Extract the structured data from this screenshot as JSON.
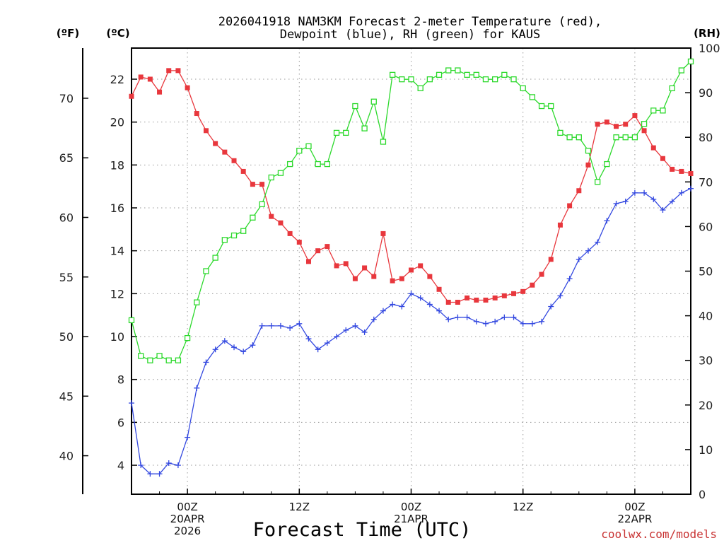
{
  "chart_data": {
    "type": "line",
    "title_lines": [
      "2026041918 NAM3KM Forecast 2-meter Temperature (red),",
      "Dewpoint (blue), RH (green) for KAUS"
    ],
    "xlabel": "Forecast Time (UTC)",
    "credit": "coolwx.com/models",
    "units": {
      "fahrenheit": "(ºF)",
      "celsius": "(ºC)",
      "rh": "(RH)"
    },
    "x_range_hours": [
      0,
      60
    ],
    "x_ticks": [
      {
        "hour": 6,
        "lines": [
          "00Z",
          "20APR",
          "2026"
        ]
      },
      {
        "hour": 18,
        "lines": [
          "12Z"
        ]
      },
      {
        "hour": 30,
        "lines": [
          "00Z",
          "21APR"
        ]
      },
      {
        "hour": 42,
        "lines": [
          "12Z"
        ]
      },
      {
        "hour": 54,
        "lines": [
          "00Z",
          "22APR"
        ]
      }
    ],
    "y_celsius": {
      "range": [
        2.65,
        23.45
      ],
      "ticks": [
        "4",
        "6",
        "8",
        "10",
        "12",
        "14",
        "16",
        "18",
        "20",
        "22"
      ]
    },
    "y_fahrenheit": {
      "ticks": [
        "40",
        "45",
        "50",
        "55",
        "60",
        "65",
        "70"
      ]
    },
    "y_rh": {
      "range": [
        0,
        100
      ],
      "ticks": [
        "0",
        "10",
        "20",
        "30",
        "40",
        "50",
        "60",
        "70",
        "80",
        "90",
        "100"
      ]
    },
    "series": [
      {
        "name": "2-meter Temperature",
        "unit": "C",
        "color": "#e8373d",
        "marker": "filled-square",
        "hours": [
          0,
          1,
          2,
          3,
          4,
          5,
          6,
          7,
          8,
          9,
          10,
          11,
          12,
          13,
          14,
          15,
          16,
          17,
          18,
          19,
          20,
          21,
          22,
          23,
          24,
          25,
          26,
          27,
          28,
          29,
          30,
          31,
          32,
          33,
          34,
          35,
          36,
          37,
          38,
          39,
          40,
          41,
          42,
          43,
          44,
          45,
          46,
          47,
          48,
          49,
          50,
          51,
          52,
          53,
          54,
          55,
          56,
          57,
          58,
          59,
          60
        ],
        "values": [
          21.2,
          22.1,
          22.0,
          21.4,
          22.4,
          22.4,
          21.6,
          20.4,
          19.6,
          19.0,
          18.6,
          18.2,
          17.7,
          17.1,
          17.1,
          15.6,
          15.3,
          14.8,
          14.4,
          13.5,
          14.0,
          14.2,
          13.3,
          13.4,
          12.7,
          13.2,
          12.8,
          14.8,
          12.6,
          12.7,
          13.1,
          13.3,
          12.8,
          12.2,
          11.6,
          11.6,
          11.8,
          11.7,
          11.7,
          11.8,
          11.9,
          12.0,
          12.1,
          12.4,
          12.9,
          13.6,
          15.2,
          16.1,
          16.8,
          18.0,
          19.9,
          20.0,
          19.8,
          19.9,
          20.3,
          19.6,
          18.8,
          18.3,
          17.8,
          17.7,
          17.6
        ]
      },
      {
        "name": "Dewpoint",
        "unit": "C",
        "color": "#3348e0",
        "marker": "plus",
        "hours": [
          0,
          1,
          2,
          3,
          4,
          5,
          6,
          7,
          8,
          9,
          10,
          11,
          12,
          13,
          14,
          15,
          16,
          17,
          18,
          19,
          20,
          21,
          22,
          23,
          24,
          25,
          26,
          27,
          28,
          29,
          30,
          31,
          32,
          33,
          34,
          35,
          36,
          37,
          38,
          39,
          40,
          41,
          42,
          43,
          44,
          45,
          46,
          47,
          48,
          49,
          50,
          51,
          52,
          53,
          54,
          55,
          56,
          57,
          58,
          59,
          60
        ],
        "values": [
          6.9,
          4.0,
          3.6,
          3.6,
          4.1,
          4.0,
          5.3,
          7.6,
          8.8,
          9.4,
          9.8,
          9.5,
          9.3,
          9.6,
          10.5,
          10.5,
          10.5,
          10.4,
          10.6,
          9.9,
          9.4,
          9.7,
          10.0,
          10.3,
          10.5,
          10.2,
          10.8,
          11.2,
          11.5,
          11.4,
          12.0,
          11.8,
          11.5,
          11.2,
          10.8,
          10.9,
          10.9,
          10.7,
          10.6,
          10.7,
          10.9,
          10.9,
          10.6,
          10.6,
          10.7,
          11.4,
          11.9,
          12.7,
          13.6,
          14.0,
          14.4,
          15.4,
          16.2,
          16.3,
          16.7,
          16.7,
          16.4,
          15.9,
          16.3,
          16.7,
          16.9
        ]
      },
      {
        "name": "RH",
        "unit": "%",
        "color": "#2cd92c",
        "marker": "open-square",
        "hours": [
          0,
          1,
          2,
          3,
          4,
          5,
          6,
          7,
          8,
          9,
          10,
          11,
          12,
          13,
          14,
          15,
          16,
          17,
          18,
          19,
          20,
          21,
          22,
          23,
          24,
          25,
          26,
          27,
          28,
          29,
          30,
          31,
          32,
          33,
          34,
          35,
          36,
          37,
          38,
          39,
          40,
          41,
          42,
          43,
          44,
          45,
          46,
          47,
          48,
          49,
          50,
          51,
          52,
          53,
          54,
          55,
          56,
          57,
          58,
          59,
          60
        ],
        "values": [
          39,
          31,
          30,
          31,
          30,
          30,
          35,
          43,
          50,
          53,
          57,
          58,
          59,
          62,
          65,
          71,
          72,
          74,
          77,
          78,
          74,
          74,
          81,
          81,
          87,
          82,
          88,
          79,
          94,
          93,
          93,
          91,
          93,
          94,
          95,
          95,
          94,
          94,
          93,
          93,
          94,
          93,
          91,
          89,
          87,
          87,
          81,
          80,
          80,
          77,
          70,
          74,
          80,
          80,
          80,
          83,
          86,
          86,
          91,
          95,
          97
        ]
      }
    ]
  }
}
